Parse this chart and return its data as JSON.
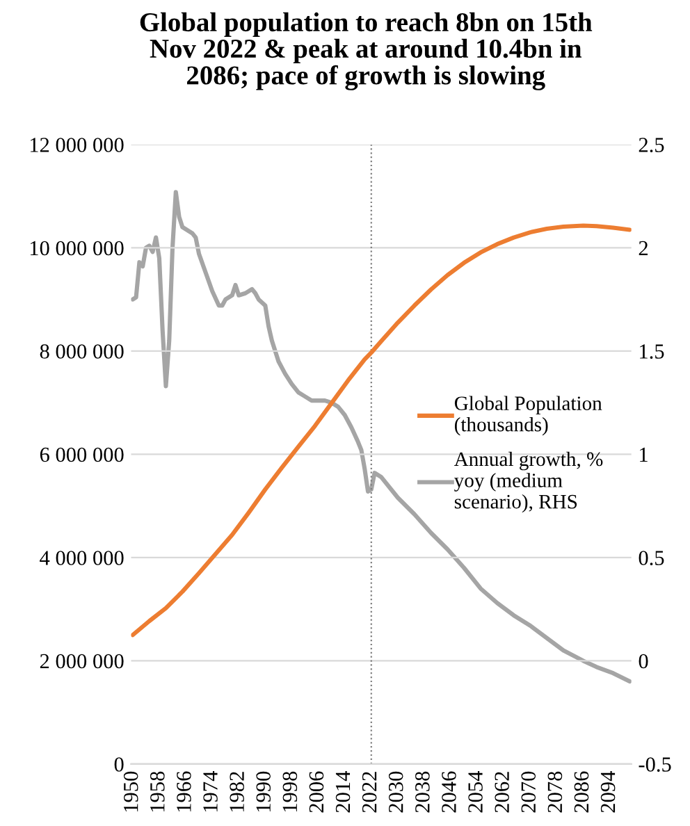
{
  "chart_data": {
    "type": "line",
    "title": "Global population to reach 8bn on 15th\nNov 2022 & peak at around 10.4bn in\n2086; pace of growth is slowing",
    "series": [
      {
        "name": "Global Population\n(thousands)",
        "color": "#ed7d31",
        "x": [
          1950,
          1955,
          1960,
          1965,
          1970,
          1975,
          1980,
          1985,
          1990,
          1995,
          2000,
          2005,
          2010,
          2015,
          2020,
          2022,
          2025,
          2030,
          2035,
          2040,
          2045,
          2050,
          2055,
          2060,
          2065,
          2070,
          2075,
          2080,
          2086,
          2090,
          2095,
          2100
        ],
        "values": [
          2500000,
          2770000,
          3020000,
          3340000,
          3700000,
          4070000,
          4440000,
          4870000,
          5320000,
          5740000,
          6150000,
          6550000,
          6990000,
          7430000,
          7840000,
          7970000,
          8190000,
          8550000,
          8880000,
          9190000,
          9470000,
          9710000,
          9910000,
          10070000,
          10200000,
          10300000,
          10370000,
          10410000,
          10430000,
          10420000,
          10390000,
          10350000
        ]
      },
      {
        "name": "Annual growth, %\nyoy (medium\nscenario), RHS",
        "color": "#a5a5a5",
        "axis": "y2",
        "x": [
          1950,
          1951,
          1952,
          1953,
          1954,
          1955,
          1956,
          1957,
          1958,
          1959,
          1960,
          1961,
          1962,
          1963,
          1964,
          1965,
          1967,
          1968,
          1969,
          1970,
          1972,
          1974,
          1976,
          1977,
          1978,
          1980,
          1981,
          1982,
          1984,
          1986,
          1987,
          1988,
          1990,
          1991,
          1992,
          1994,
          1996,
          1998,
          2000,
          2002,
          2004,
          2006,
          2008,
          2010,
          2012,
          2014,
          2016,
          2018,
          2019,
          2020,
          2021,
          2022,
          2023,
          2025,
          2030,
          2035,
          2040,
          2045,
          2050,
          2055,
          2060,
          2065,
          2070,
          2075,
          2080,
          2086,
          2090,
          2095,
          2100
        ],
        "values": [
          1.75,
          1.76,
          1.93,
          1.91,
          2.0,
          2.01,
          1.98,
          2.05,
          1.95,
          1.6,
          1.33,
          1.55,
          2.0,
          2.27,
          2.15,
          2.1,
          2.08,
          2.07,
          2.05,
          1.97,
          1.88,
          1.79,
          1.72,
          1.72,
          1.75,
          1.77,
          1.82,
          1.77,
          1.78,
          1.8,
          1.78,
          1.75,
          1.72,
          1.62,
          1.55,
          1.45,
          1.39,
          1.34,
          1.3,
          1.28,
          1.26,
          1.26,
          1.26,
          1.25,
          1.23,
          1.19,
          1.13,
          1.06,
          1.02,
          0.93,
          0.82,
          0.83,
          0.91,
          0.89,
          0.79,
          0.71,
          0.62,
          0.54,
          0.45,
          0.35,
          0.28,
          0.22,
          0.17,
          0.11,
          0.05,
          0.0,
          -0.03,
          -0.06,
          -0.1
        ]
      }
    ],
    "xlim": [
      1949.5,
      2100.5
    ],
    "xticks": [
      1950,
      1958,
      1966,
      1974,
      1982,
      1990,
      1998,
      2006,
      2014,
      2022,
      2030,
      2038,
      2046,
      2054,
      2062,
      2070,
      2078,
      2086,
      2094
    ],
    "ylim": [
      0,
      12000000
    ],
    "yticks": [
      {
        "value": 0,
        "label": "0"
      },
      {
        "value": 2000000,
        "label": "2 000 000"
      },
      {
        "value": 4000000,
        "label": "4 000 000"
      },
      {
        "value": 6000000,
        "label": "6 000 000"
      },
      {
        "value": 8000000,
        "label": "8 000 000"
      },
      {
        "value": 10000000,
        "label": "10 000 000"
      },
      {
        "value": 12000000,
        "label": "12 000 000"
      }
    ],
    "y2lim": [
      -0.5,
      2.5
    ],
    "y2ticks": [
      {
        "value": -0.5,
        "label": "-0.5"
      },
      0,
      0.5,
      1,
      1.5,
      2,
      2.5
    ],
    "ref_lines": [
      {
        "axis": "x",
        "value": 2022,
        "color": "#7f7f7f",
        "line_style": "dotted"
      }
    ],
    "grid": "y",
    "legend": "right",
    "marker": "none",
    "line_style": "solid"
  }
}
